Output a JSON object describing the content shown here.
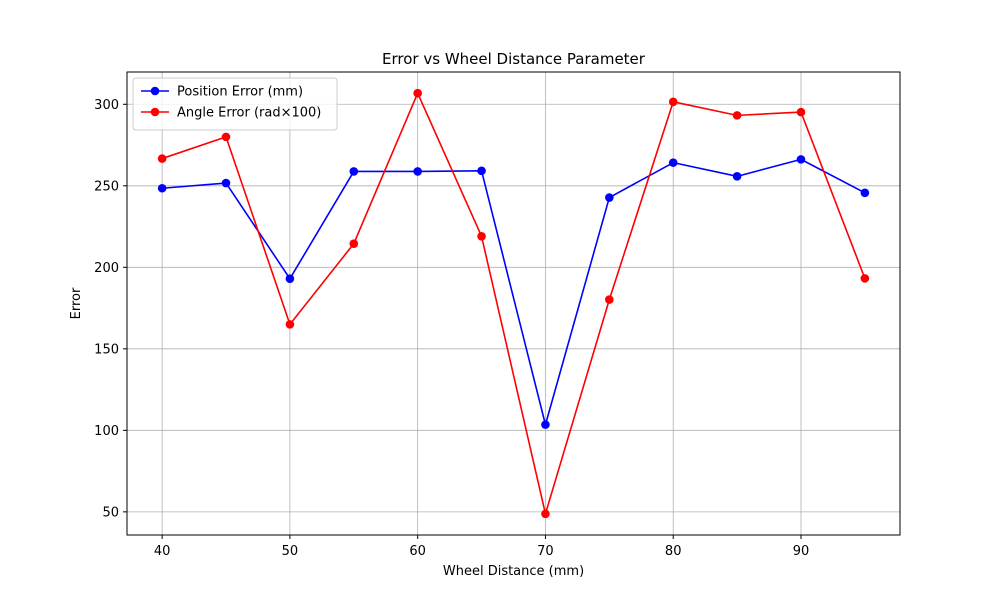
{
  "chart_data": {
    "type": "line",
    "title": "Error vs Wheel Distance Parameter",
    "xlabel": "Wheel Distance (mm)",
    "ylabel": "Error",
    "x": [
      40,
      45,
      50,
      55,
      60,
      65,
      70,
      75,
      80,
      85,
      90,
      95
    ],
    "xlim": [
      37.25,
      97.75
    ],
    "ylim": [
      35.8,
      319.8
    ],
    "xticks": [
      40,
      50,
      60,
      70,
      80,
      90
    ],
    "yticks": [
      50,
      100,
      150,
      200,
      250,
      300
    ],
    "grid": true,
    "legend_position": "top-left",
    "series": [
      {
        "name": "Position Error (mm)",
        "color": "#0000ff",
        "marker": "circle",
        "values": [
          248.5,
          251.7,
          193.0,
          258.8,
          258.8,
          259.2,
          103.5,
          242.8,
          264.2,
          255.8,
          266.2,
          245.7
        ]
      },
      {
        "name": "Angle Error (rad×100)",
        "color": "#ff0000",
        "marker": "circle",
        "values": [
          266.7,
          280.0,
          165.0,
          214.5,
          306.8,
          219.0,
          48.8,
          180.2,
          301.5,
          293.2,
          295.2,
          193.2
        ]
      }
    ]
  }
}
